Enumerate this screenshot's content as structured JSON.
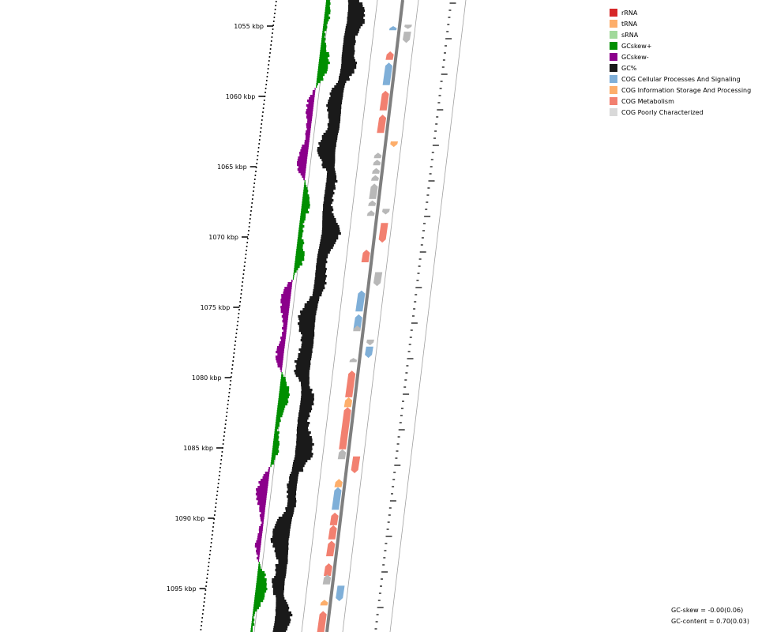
{
  "ticks": [
    {
      "label": "1055 kbp"
    },
    {
      "label": "1060 kbp"
    },
    {
      "label": "1065 kbp"
    },
    {
      "label": "1070 kbp"
    },
    {
      "label": "1075 kbp"
    },
    {
      "label": "1080 kbp"
    },
    {
      "label": "1085 kbp"
    },
    {
      "label": "1090 kbp"
    },
    {
      "label": "1095 kbp"
    }
  ],
  "legend": [
    {
      "label": "rRNA",
      "color": "#d62728"
    },
    {
      "label": "tRNA",
      "color": "#fdae6b"
    },
    {
      "label": "sRNA",
      "color": "#a1d99b"
    },
    {
      "label": "GCskew+",
      "color": "#008f00"
    },
    {
      "label": "GCskew-",
      "color": "#8b008b"
    },
    {
      "label": "GC%",
      "color": "#1a1a1a"
    },
    {
      "label": "COG Cellular Processes And Signaling",
      "color": "#7fafd8"
    },
    {
      "label": "COG Information Storage And Processing",
      "color": "#fdae6b"
    },
    {
      "label": "COG Metabolism",
      "color": "#f28070"
    },
    {
      "label": "COG Poorly Characterized",
      "color": "#d9d9d9"
    }
  ],
  "stats": {
    "gc_skew": "GC-skew = -0.00(0.06)",
    "gc_content": "GC-content = 0.70(0.03)"
  },
  "colors": {
    "backbone": "#7f7f7f",
    "guide": "#a0a0a0",
    "skew_pos": "#008f00",
    "skew_neg": "#8b008b",
    "gc": "#1a1a1a",
    "cog_cellular": "#7fafd8",
    "cog_info": "#fdae6b",
    "cog_metabolism": "#f28070",
    "cog_poor": "#d9d9d9",
    "cog_poor_dark": "#b8b8b8"
  },
  "features": [
    {
      "kp": 1054.9,
      "len": 0.3,
      "strand": "-",
      "cog": "poor"
    },
    {
      "kp": 1055.4,
      "len": 0.8,
      "strand": "-",
      "cog": "poor"
    },
    {
      "kp": 1055.0,
      "len": 0.3,
      "strand": "+",
      "cog": "cellular"
    },
    {
      "kp": 1056.8,
      "len": 0.6,
      "strand": "+",
      "cog": "metabolism"
    },
    {
      "kp": 1057.6,
      "len": 1.6,
      "strand": "+",
      "cog": "cellular"
    },
    {
      "kp": 1059.6,
      "len": 1.4,
      "strand": "+",
      "cog": "metabolism"
    },
    {
      "kp": 1061.3,
      "len": 1.3,
      "strand": "+",
      "cog": "metabolism"
    },
    {
      "kp": 1063.2,
      "len": 0.4,
      "strand": "-",
      "cog": "info"
    },
    {
      "kp": 1064.0,
      "len": 0.4,
      "strand": "+",
      "cog": "poor"
    },
    {
      "kp": 1064.5,
      "len": 0.4,
      "strand": "+",
      "cog": "poor"
    },
    {
      "kp": 1065.1,
      "len": 0.4,
      "strand": "+",
      "cog": "poor"
    },
    {
      "kp": 1065.6,
      "len": 0.4,
      "strand": "+",
      "cog": "poor"
    },
    {
      "kp": 1066.2,
      "len": 1.1,
      "strand": "+",
      "cog": "poor"
    },
    {
      "kp": 1067.4,
      "len": 0.4,
      "strand": "+",
      "cog": "poor"
    },
    {
      "kp": 1068.1,
      "len": 0.4,
      "strand": "+",
      "cog": "poor"
    },
    {
      "kp": 1068.0,
      "len": 0.4,
      "strand": "-",
      "cog": "poor"
    },
    {
      "kp": 1069.0,
      "len": 1.4,
      "strand": "-",
      "cog": "metabolism"
    },
    {
      "kp": 1070.9,
      "len": 0.9,
      "strand": "+",
      "cog": "metabolism"
    },
    {
      "kp": 1072.5,
      "len": 1.0,
      "strand": "-",
      "cog": "poor"
    },
    {
      "kp": 1073.8,
      "len": 1.5,
      "strand": "+",
      "cog": "cellular"
    },
    {
      "kp": 1075.5,
      "len": 1.1,
      "strand": "+",
      "cog": "cellular"
    },
    {
      "kp": 1076.3,
      "len": 0.4,
      "strand": "+",
      "cog": "poor"
    },
    {
      "kp": 1077.3,
      "len": 0.4,
      "strand": "-",
      "cog": "poor"
    },
    {
      "kp": 1077.8,
      "len": 0.8,
      "strand": "-",
      "cog": "cellular"
    },
    {
      "kp": 1078.6,
      "len": 0.3,
      "strand": "+",
      "cog": "poor"
    },
    {
      "kp": 1079.5,
      "len": 1.9,
      "strand": "+",
      "cog": "metabolism"
    },
    {
      "kp": 1081.4,
      "len": 0.7,
      "strand": "+",
      "cog": "info"
    },
    {
      "kp": 1082.1,
      "len": 3.0,
      "strand": "+",
      "cog": "metabolism"
    },
    {
      "kp": 1085.1,
      "len": 0.7,
      "strand": "+",
      "cog": "poor"
    },
    {
      "kp": 1085.6,
      "len": 1.2,
      "strand": "-",
      "cog": "metabolism"
    },
    {
      "kp": 1087.2,
      "len": 0.6,
      "strand": "+",
      "cog": "info"
    },
    {
      "kp": 1087.8,
      "len": 1.6,
      "strand": "+",
      "cog": "cellular"
    },
    {
      "kp": 1089.6,
      "len": 0.9,
      "strand": "+",
      "cog": "metabolism"
    },
    {
      "kp": 1090.5,
      "len": 1.0,
      "strand": "+",
      "cog": "metabolism"
    },
    {
      "kp": 1091.6,
      "len": 1.1,
      "strand": "+",
      "cog": "metabolism"
    },
    {
      "kp": 1093.2,
      "len": 0.9,
      "strand": "+",
      "cog": "metabolism"
    },
    {
      "kp": 1094.0,
      "len": 0.7,
      "strand": "+",
      "cog": "poor"
    },
    {
      "kp": 1094.8,
      "len": 1.1,
      "strand": "-",
      "cog": "cellular"
    },
    {
      "kp": 1095.8,
      "len": 0.4,
      "strand": "+",
      "cog": "info"
    },
    {
      "kp": 1096.6,
      "len": 1.6,
      "strand": "+",
      "cog": "metabolism"
    }
  ]
}
